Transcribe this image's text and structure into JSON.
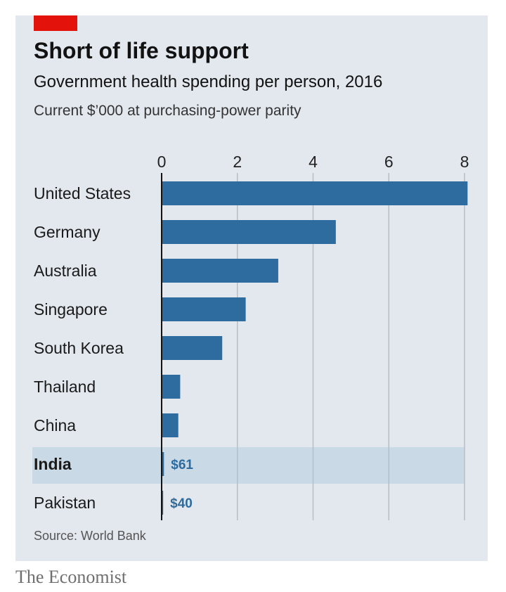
{
  "header": {
    "title": "Short of life support",
    "subtitle": "Government health spending per person, 2016",
    "units": "Current $’000 at purchasing-power parity"
  },
  "footer": {
    "source": "Source: World Bank",
    "brand": "The Economist"
  },
  "colors": {
    "background": "#e3e8ee",
    "bar": "#2e6b9e",
    "highlight": "#c9d9e6",
    "accent": "#e3120b"
  },
  "chart_data": {
    "type": "bar",
    "orientation": "horizontal",
    "categories": [
      "United States",
      "Germany",
      "Australia",
      "Singapore",
      "South Korea",
      "Thailand",
      "China",
      "India",
      "Pakistan"
    ],
    "values": [
      8.08,
      4.6,
      3.08,
      2.22,
      1.6,
      0.49,
      0.44,
      0.061,
      0.04
    ],
    "data_labels": {
      "India": "$61",
      "Pakistan": "$40"
    },
    "highlight": "India",
    "xlim": [
      0,
      8
    ],
    "xticks": [
      "0",
      "2",
      "4",
      "6",
      "8"
    ],
    "grid": true
  }
}
